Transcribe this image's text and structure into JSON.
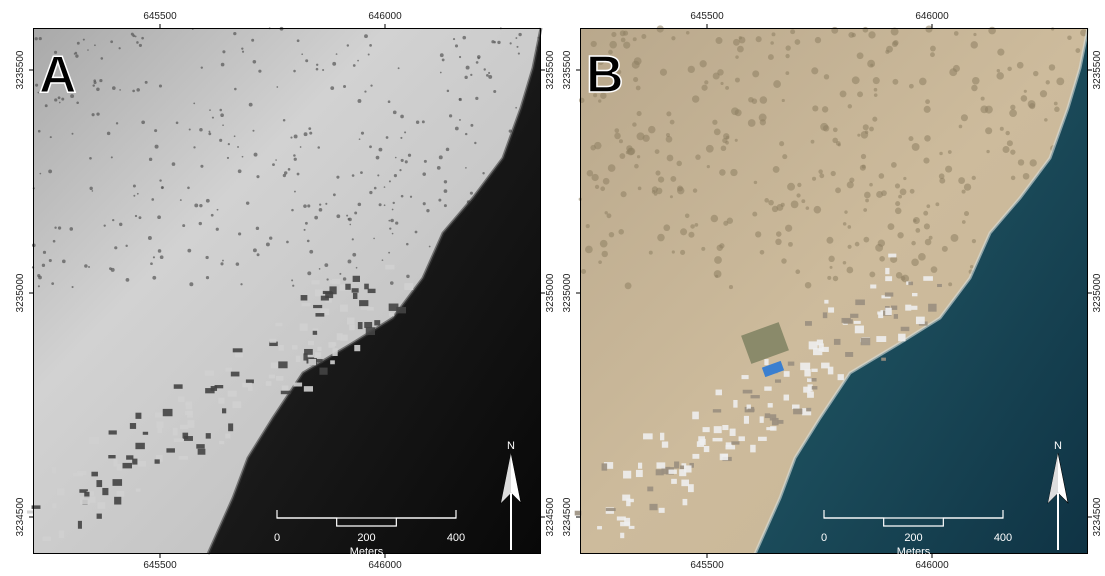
{
  "panels": [
    {
      "label": "A",
      "x_ticks_top": [
        645500,
        646000
      ],
      "x_ticks_bottom": [
        645500,
        646000
      ],
      "y_ticks_left": [
        3235500,
        3235000,
        3234500
      ],
      "y_ticks_right": [
        3235500,
        3235000,
        3234500
      ],
      "scale_bar": {
        "ticks": [
          0,
          200,
          400
        ],
        "unit": "Meters"
      },
      "north": "N"
    },
    {
      "label": "B",
      "x_ticks_top": [
        645500,
        646000
      ],
      "x_ticks_bottom": [
        645500,
        646000
      ],
      "y_ticks_left": [
        3235500,
        3235000,
        3234500
      ],
      "y_ticks_right": [
        3235500,
        3235000,
        3234500
      ],
      "scale_bar": {
        "ticks": [
          0,
          200,
          400
        ],
        "unit": "Meters"
      },
      "north": "N"
    }
  ]
}
